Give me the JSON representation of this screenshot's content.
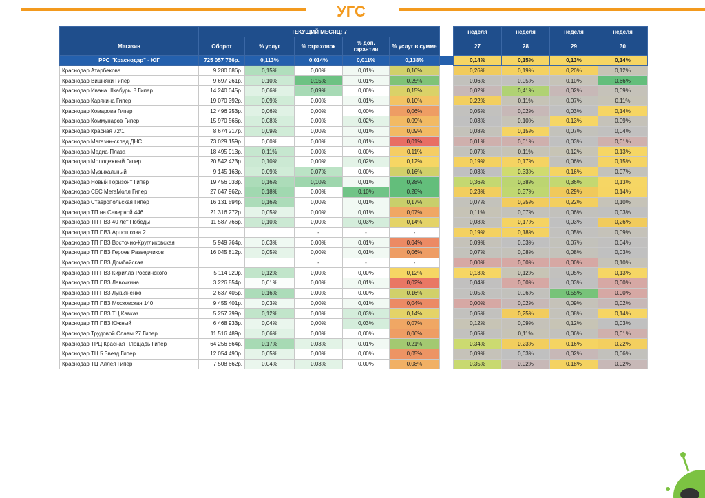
{
  "header": {
    "title": "УГС"
  },
  "table": {
    "group_header": "ТЕКУЩИЙ МЕСЯЦ: 7",
    "week_headers": [
      "неделя",
      "неделя",
      "неделя",
      "неделя"
    ],
    "columns": [
      "Магазин",
      "Оборот",
      "% услуг",
      "% страховок",
      "% доп. гарантии",
      "% услуг в сумме",
      "27",
      "28",
      "29",
      "30"
    ],
    "summary": [
      "РРС \"Краснодар\" - ЮГ",
      "725 057 766р.",
      "0,113%",
      "0,014%",
      "0,011%",
      "0,138%",
      "0,14%",
      "0,15%",
      "0,13%",
      "0,14%"
    ],
    "rows": [
      [
        "Краснодар Атарбекова",
        "9 280 686р.",
        "0,15%",
        "0,00%",
        "0,01%",
        "0,16%",
        "0,26%",
        "0,19%",
        "0,20%",
        "0,12%"
      ],
      [
        "Краснодар Вишняки Гипер",
        "9 697 261р.",
        "0,10%",
        "0,15%",
        "0,01%",
        "0,25%",
        "0,06%",
        "0,05%",
        "0,10%",
        "0,66%"
      ],
      [
        "Краснодар Ивана Шкабуры 8 Гипер",
        "14 240 045р.",
        "0,06%",
        "0,09%",
        "0,00%",
        "0,15%",
        "0,02%",
        "0,41%",
        "0,02%",
        "0,09%"
      ],
      [
        "Краснодар Карякина Гипер",
        "19 070 392р.",
        "0,09%",
        "0,00%",
        "0,01%",
        "0,10%",
        "0,22%",
        "0,11%",
        "0,07%",
        "0,11%"
      ],
      [
        "Краснодар Комарова Гипер",
        "12 496 253р.",
        "0,06%",
        "0,00%",
        "0,00%",
        "0,06%",
        "0,05%",
        "0,02%",
        "0,03%",
        "0,14%"
      ],
      [
        "Краснодар Коммунаров Гипер",
        "15 970 566р.",
        "0,08%",
        "0,00%",
        "0,02%",
        "0,09%",
        "0,03%",
        "0,10%",
        "0,13%",
        "0,09%"
      ],
      [
        "Краснодар Красная 72/1",
        "8 674 217р.",
        "0,09%",
        "0,00%",
        "0,01%",
        "0,09%",
        "0,08%",
        "0,15%",
        "0,07%",
        "0,04%"
      ],
      [
        "Краснодар Магазин-склад ДНС",
        "73 029 159р.",
        "0,00%",
        "0,00%",
        "0,01%",
        "0,01%",
        "0,01%",
        "0,01%",
        "0,03%",
        "0,01%"
      ],
      [
        "Краснодар Медиа-Плаза",
        "18 495 913р.",
        "0,11%",
        "0,00%",
        "0,00%",
        "0,11%",
        "0,07%",
        "0,11%",
        "0,12%",
        "0,13%"
      ],
      [
        "Краснодар Молодежный Гипер",
        "20 542 423р.",
        "0,10%",
        "0,00%",
        "0,02%",
        "0,12%",
        "0,19%",
        "0,17%",
        "0,06%",
        "0,15%"
      ],
      [
        "Краснодар Музыкальный",
        "9 145 163р.",
        "0,09%",
        "0,07%",
        "0,00%",
        "0,16%",
        "0,03%",
        "0,33%",
        "0,16%",
        "0,07%"
      ],
      [
        "Краснодар Новый Горизонт Гипер",
        "19 456 033р.",
        "0,16%",
        "0,10%",
        "0,01%",
        "0,28%",
        "0,36%",
        "0,38%",
        "0,36%",
        "0,13%"
      ],
      [
        "Краснодар СБС МегаМолл Гипер",
        "27 647 962р.",
        "0,18%",
        "0,00%",
        "0,10%",
        "0,28%",
        "0,23%",
        "0,37%",
        "0,29%",
        "0,14%"
      ],
      [
        "Краснодар Ставропольская Гипер",
        "16 131 594р.",
        "0,16%",
        "0,00%",
        "0,01%",
        "0,17%",
        "0,07%",
        "0,25%",
        "0,22%",
        "0,10%"
      ],
      [
        "Краснодар ТП на Северной 446",
        "21 316 272р.",
        "0,05%",
        "0,00%",
        "0,01%",
        "0,07%",
        "0,11%",
        "0,07%",
        "0,06%",
        "0,03%"
      ],
      [
        "Краснодар ТП ПВЗ 40 лет Победы",
        "11 587 766р.",
        "0,10%",
        "0,00%",
        "0,03%",
        "0,14%",
        "0,08%",
        "0,17%",
        "0,03%",
        "0,26%"
      ],
      [
        "Краснодар ТП ПВЗ Артюшкова 2",
        null,
        null,
        "-",
        "-",
        "-",
        "0,19%",
        "0,18%",
        "0,05%",
        "0,09%"
      ],
      [
        "Краснодар ТП ПВЗ Восточно-Кругликовская",
        "5 949 764р.",
        "0,03%",
        "0,00%",
        "0,01%",
        "0,04%",
        "0,09%",
        "0,03%",
        "0,07%",
        "0,04%"
      ],
      [
        "Краснодар ТП ПВЗ Героев Разведчиков",
        "16 045 812р.",
        "0,05%",
        "0,00%",
        "0,01%",
        "0,06%",
        "0,07%",
        "0,08%",
        "0,08%",
        "0,03%"
      ],
      [
        "Краснодар ТП ПВЗ Домбайская",
        null,
        null,
        "-",
        "-",
        "-",
        "0,00%",
        "0,00%",
        "0,00%",
        "0,10%"
      ],
      [
        "Краснодар ТП ПВЗ Кирилла Россинского",
        "5 114 920р.",
        "0,12%",
        "0,00%",
        "0,00%",
        "0,12%",
        "0,13%",
        "0,12%",
        "0,05%",
        "0,13%"
      ],
      [
        "Краснодар ТП ПВЗ Лавочкина",
        "3 226 854р.",
        "0,01%",
        "0,00%",
        "0,01%",
        "0,02%",
        "0,04%",
        "0,00%",
        "0,03%",
        "0,00%"
      ],
      [
        "Краснодар ТП ПВЗ Лукьяненко",
        "2 637 405р.",
        "0,16%",
        "0,00%",
        "0,00%",
        "0,16%",
        "0,05%",
        "0,06%",
        "0,55%",
        "0,00%"
      ],
      [
        "Краснодар ТП ПВЗ Московская 140",
        "9 455 401р.",
        "0,03%",
        "0,00%",
        "0,01%",
        "0,04%",
        "0,00%",
        "0,02%",
        "0,09%",
        "0,02%"
      ],
      [
        "Краснодар ТП ПВЗ ТЦ Кавказ",
        "5 257 799р.",
        "0,12%",
        "0,00%",
        "0,03%",
        "0,14%",
        "0,05%",
        "0,25%",
        "0,08%",
        "0,14%"
      ],
      [
        "Краснодар ТП ПВЗ Южный",
        "6 468 933р.",
        "0,04%",
        "0,00%",
        "0,03%",
        "0,07%",
        "0,12%",
        "0,09%",
        "0,12%",
        "0,03%"
      ],
      [
        "Краснодар Трудовой Славы 27 Гипер",
        "11 516 489р.",
        "0,06%",
        "0,00%",
        "0,00%",
        "0,06%",
        "0,05%",
        "0,11%",
        "0,06%",
        "0,01%"
      ],
      [
        "Краснодар ТРЦ Красная Площадь Гипер",
        "64 256 864р.",
        "0,17%",
        "0,03%",
        "0,01%",
        "0,21%",
        "0,34%",
        "0,23%",
        "0,16%",
        "0,22%"
      ],
      [
        "Краснодар ТЦ 5 Звезд Гипер",
        "12 054 490р.",
        "0,05%",
        "0,00%",
        "0,00%",
        "0,05%",
        "0,09%",
        "0,03%",
        "0,02%",
        "0,06%"
      ],
      [
        "Краснодар ТЦ Аллея Гипер",
        "7 508 662р.",
        "0,04%",
        "0,03%",
        "0,00%",
        "0,08%",
        "0,35%",
        "0,02%",
        "0,18%",
        "0,02%"
      ]
    ]
  }
}
